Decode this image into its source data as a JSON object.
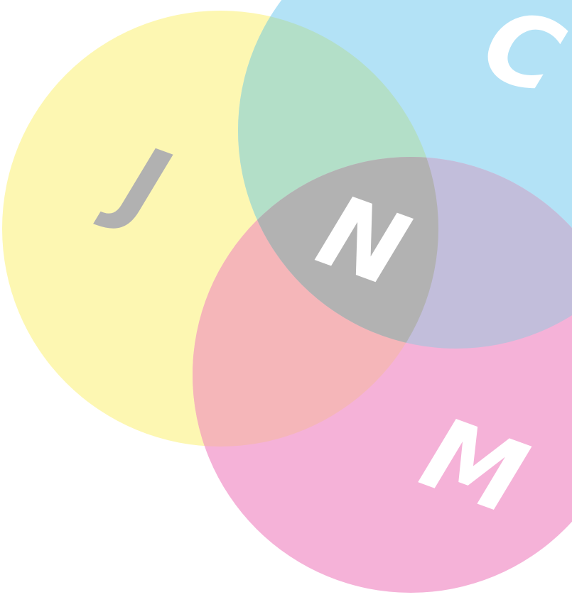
{
  "venn": {
    "circles": [
      {
        "id": "yellow",
        "color": "#fdf7b2"
      },
      {
        "id": "cyan",
        "color": "#b3e2f6"
      },
      {
        "id": "magenta",
        "color": "#f5b2d8"
      }
    ],
    "overlaps": {
      "yellow_cyan": "#b3dfc8",
      "yellow_magenta": "#f5b6b9",
      "cyan_magenta": "#c2bedb",
      "all_three": "#b2b2b2"
    },
    "letters": {
      "yellow": "J",
      "cyan": "C",
      "magenta": "M",
      "center": "N"
    },
    "letter_colors": {
      "yellow": "#b1b1b1",
      "cyan": "#ffffff",
      "magenta": "#ffffff",
      "center": "#ffffff"
    }
  }
}
